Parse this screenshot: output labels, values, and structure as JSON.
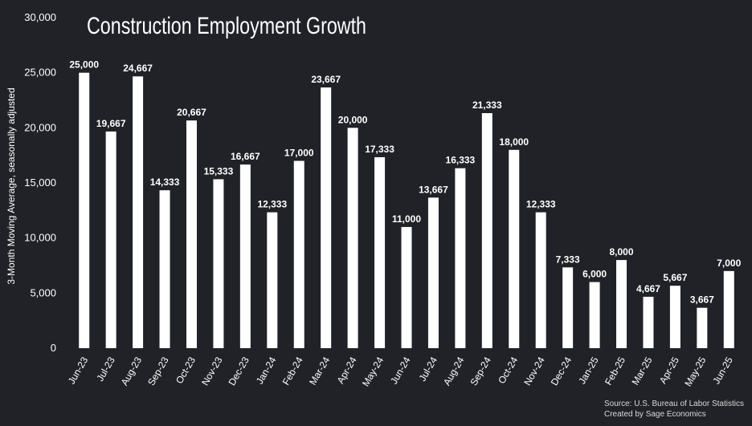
{
  "chart_data": {
    "type": "bar",
    "title": "Construction Employment Growth",
    "xlabel": "",
    "ylabel": "3-Month Moving Average, seasonally adjusted",
    "ylim": [
      0,
      30000
    ],
    "yticks": [
      0,
      5000,
      10000,
      15000,
      20000,
      25000,
      30000
    ],
    "ytick_labels": [
      "0",
      "5,000",
      "10,000",
      "15,000",
      "20,000",
      "25,000",
      "30,000"
    ],
    "categories": [
      "Jun-23",
      "Jul-23",
      "Aug-23",
      "Sep-23",
      "Oct-23",
      "Nov-23",
      "Dec-23",
      "Jan-24",
      "Feb-24",
      "Mar-24",
      "Apr-24",
      "May-24",
      "Jun-24",
      "Jul-24",
      "Aug-24",
      "Sep-24",
      "Oct-24",
      "Nov-24",
      "Dec-24",
      "Jan-25",
      "Feb-25",
      "Mar-25",
      "Apr-25",
      "May-25",
      "Jun-25"
    ],
    "values": [
      25000,
      19667,
      24667,
      14333,
      20667,
      15333,
      16667,
      12333,
      17000,
      23667,
      20000,
      17333,
      11000,
      13667,
      16333,
      21333,
      18000,
      12333,
      7333,
      6000,
      8000,
      4667,
      5667,
      3667,
      7000
    ],
    "data_labels": [
      "25,000",
      "19,667",
      "24,667",
      "14,333",
      "20,667",
      "15,333",
      "16,667",
      "12,333",
      "17,000",
      "23,667",
      "20,000",
      "17,333",
      "11,000",
      "13,667",
      "16,333",
      "21,333",
      "18,000",
      "12,333",
      "7,333",
      "6,000",
      "8,000",
      "4,667",
      "5,667",
      "3,667",
      "7,000"
    ],
    "grid": false,
    "bar_color": "#ffffff",
    "background_color": "#202228",
    "source_note": "Source: U.S. Bureau of Labor Statistics",
    "credit_note": "Created by Sage Economics"
  }
}
